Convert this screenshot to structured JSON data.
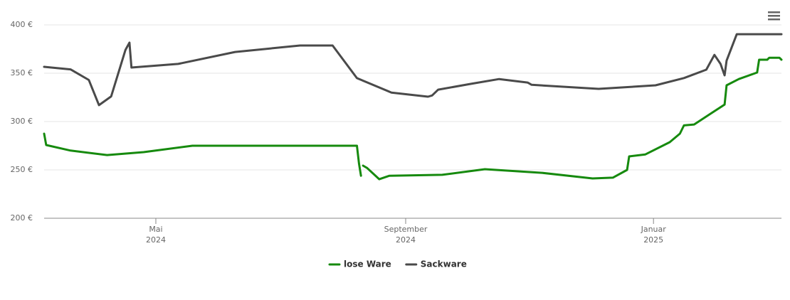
{
  "chart_data": {
    "type": "line",
    "xlim": [
      "2024-03-07",
      "2025-03-05"
    ],
    "xticks": [
      {
        "value": "2024-05-01",
        "label": [
          "Mai",
          "2024"
        ]
      },
      {
        "value": "2024-09-01",
        "label": [
          "September",
          "2024"
        ]
      },
      {
        "value": "2025-01-01",
        "label": [
          "Januar",
          "2025"
        ]
      }
    ],
    "ylim": [
      200,
      400
    ],
    "yticks": [
      {
        "value": 200,
        "label": "200 €"
      },
      {
        "value": 250,
        "label": "250 €"
      },
      {
        "value": 300,
        "label": "300 €"
      },
      {
        "value": 350,
        "label": "350 €"
      },
      {
        "value": 400,
        "label": "400 €"
      }
    ],
    "grid": true,
    "legend": "bottom",
    "series": [
      {
        "name": "lose Ware",
        "color": "#168a0e",
        "x": [
          "2024-03-07",
          "2024-03-08",
          "2024-03-20",
          "2024-04-07",
          "2024-04-25",
          "2024-05-19",
          "2024-08-08",
          "2024-08-09",
          "2024-08-10",
          "2024-08-10",
          "2024-08-11",
          "2024-08-13",
          "2024-08-19",
          "2024-08-24",
          "2024-09-19",
          "2024-10-10",
          "2024-11-07",
          "2024-12-02",
          "2024-12-12",
          "2024-12-19",
          "2024-12-20",
          "2024-12-28",
          "2025-01-09",
          "2025-01-14",
          "2025-01-16",
          "2025-01-21",
          "2025-01-29",
          "2025-02-05",
          "2025-02-06",
          "2025-02-12",
          "2025-02-21",
          "2025-02-22",
          "2025-02-26",
          "2025-02-27",
          "2025-03-04",
          "2025-03-05"
        ],
        "values": [
          287.5,
          275.7,
          270,
          265.4,
          268.4,
          275,
          275,
          256.6,
          244,
          null,
          254.4,
          252,
          240.4,
          244,
          244.9,
          250.7,
          247,
          241.2,
          242,
          250,
          264,
          266,
          278.7,
          287.5,
          296,
          297,
          308,
          317.6,
          337.5,
          344,
          350.7,
          364,
          364,
          366,
          366,
          364
        ]
      },
      {
        "name": "Sackware",
        "color": "#4a4a4a",
        "x": [
          "2024-03-07",
          "2024-03-20",
          "2024-03-29",
          "2024-04-03",
          "2024-04-09",
          "2024-04-16",
          "2024-04-18",
          "2024-04-19",
          "2024-05-12",
          "2024-06-09",
          "2024-07-11",
          "2024-07-27",
          "2024-08-08",
          "2024-08-25",
          "2024-09-12",
          "2024-09-14",
          "2024-09-17",
          "2024-10-03",
          "2024-10-17",
          "2024-10-31",
          "2024-11-02",
          "2024-12-05",
          "2025-01-02",
          "2025-01-16",
          "2025-01-27",
          "2025-01-31",
          "2025-02-03",
          "2025-02-05",
          "2025-02-06",
          "2025-02-11",
          "2025-03-05"
        ],
        "values": [
          356.6,
          354,
          343,
          317,
          326,
          374,
          381.6,
          355.9,
          359.6,
          372,
          378.7,
          378.7,
          344.9,
          330,
          325.7,
          327,
          333,
          339,
          344,
          340.4,
          338,
          333.8,
          337.5,
          345,
          353.7,
          369,
          359.6,
          347.8,
          363,
          390.4,
          390.4
        ]
      }
    ]
  }
}
